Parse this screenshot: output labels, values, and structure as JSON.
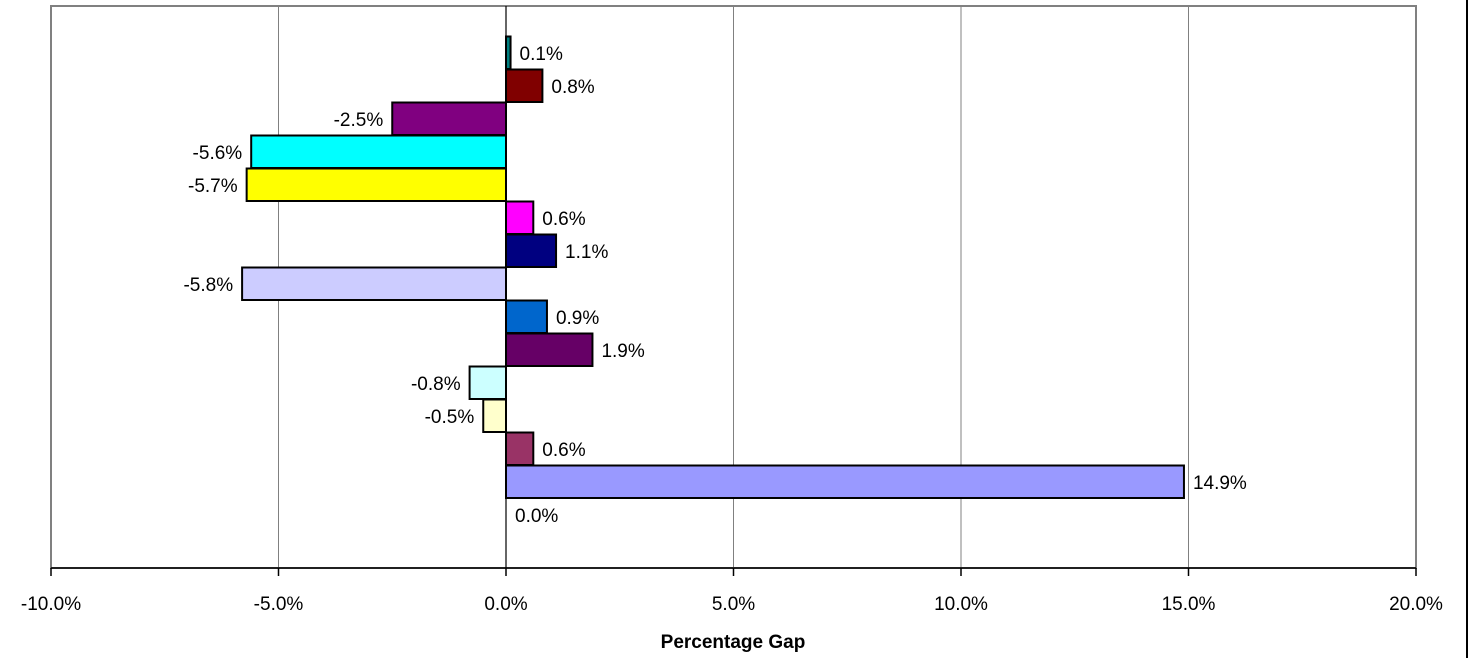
{
  "chart_data": {
    "type": "bar",
    "orientation": "horizontal",
    "xlabel": "Percentage Gap",
    "xlim": [
      -10,
      20
    ],
    "xticks": [
      -10,
      -5,
      0,
      5,
      10,
      15,
      20
    ],
    "xtick_labels": [
      "-10.0%",
      "-5.0%",
      "0.0%",
      "5.0%",
      "10.0%",
      "15.0%",
      "20.0%"
    ],
    "grid": "vertical",
    "legend": "none",
    "bars": [
      {
        "value": 0.1,
        "label": "0.1%",
        "color": "#008080"
      },
      {
        "value": 0.8,
        "label": "0.8%",
        "color": "#800000"
      },
      {
        "value": -2.5,
        "label": "-2.5%",
        "color": "#800080"
      },
      {
        "value": -5.6,
        "label": "-5.6%",
        "color": "#00FFFF"
      },
      {
        "value": -5.7,
        "label": "-5.7%",
        "color": "#FFFF00"
      },
      {
        "value": 0.6,
        "label": "0.6%",
        "color": "#FF00FF"
      },
      {
        "value": 1.1,
        "label": "1.1%",
        "color": "#000080"
      },
      {
        "value": -5.8,
        "label": "-5.8%",
        "color": "#CCCCFF"
      },
      {
        "value": 0.9,
        "label": "0.9%",
        "color": "#0066CC"
      },
      {
        "value": 1.9,
        "label": "1.9%",
        "color": "#660066"
      },
      {
        "value": -0.8,
        "label": "-0.8%",
        "color": "#CCFFFF"
      },
      {
        "value": -0.5,
        "label": "-0.5%",
        "color": "#FFFFCC"
      },
      {
        "value": 0.6,
        "label": "0.6%",
        "color": "#993366"
      },
      {
        "value": 14.9,
        "label": "14.9%",
        "color": "#9999FF"
      },
      {
        "value": 0.0,
        "label": "0.0%",
        "color": "#FFFFFF"
      }
    ]
  }
}
